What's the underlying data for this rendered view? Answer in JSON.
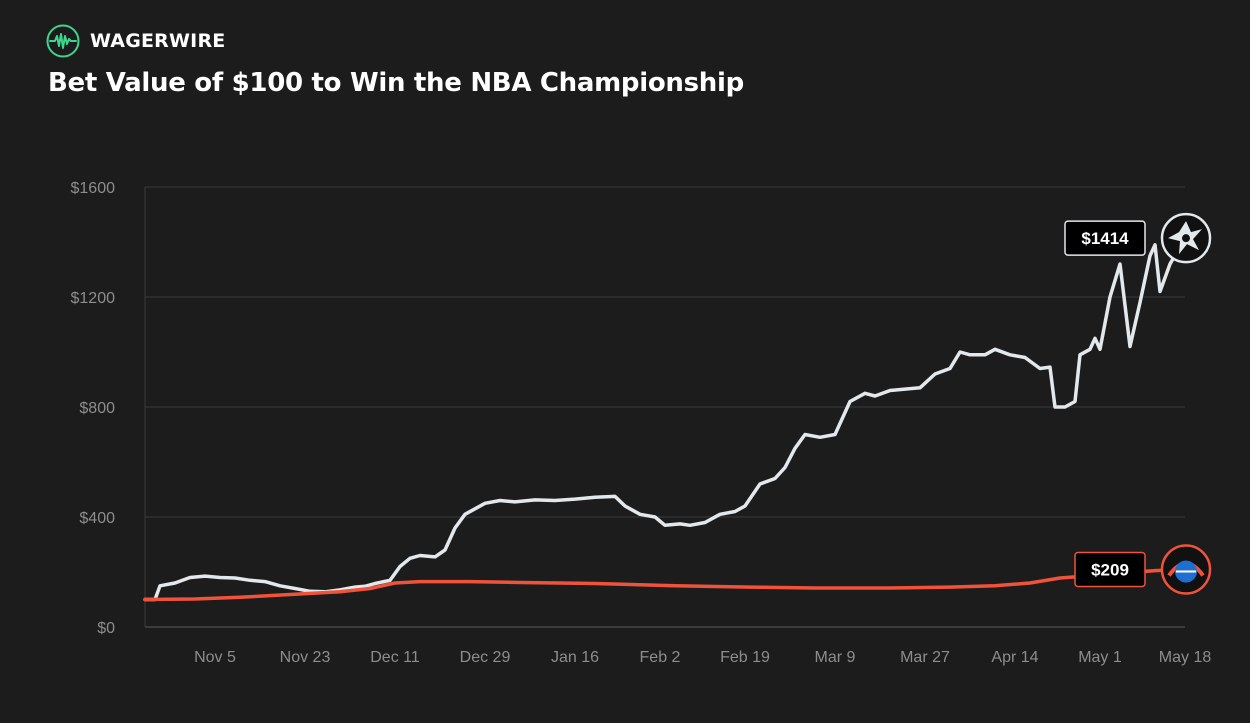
{
  "brand": {
    "name": "WAGERWIRE",
    "icon": "pulse-logo-icon",
    "accent": "#3dd68c"
  },
  "title": "Bet Value of $100 to Win the NBA Championship",
  "chart_data": {
    "type": "line",
    "title": "Bet Value of $100 to Win the NBA Championship",
    "xlabel": "",
    "ylabel": "",
    "ylim": [
      0,
      1600
    ],
    "xlim": [
      "2024-10-22",
      "2025-05-18"
    ],
    "y_ticks": [
      0,
      400,
      800,
      1200,
      1600
    ],
    "y_tick_labels": [
      "$0",
      "$400",
      "$800",
      "$1200",
      "$1600"
    ],
    "x_tick_dates": [
      "2024-11-05",
      "2024-11-23",
      "2024-12-11",
      "2024-12-29",
      "2025-01-16",
      "2025-02-02",
      "2025-02-19",
      "2025-03-09",
      "2025-03-27",
      "2025-04-14",
      "2025-05-01",
      "2025-05-18"
    ],
    "x_tick_labels": [
      "Nov 5",
      "Nov 23",
      "Dec 11",
      "Dec 29",
      "Jan 16",
      "Feb 2",
      "Feb 19",
      "Mar 9",
      "Mar 27",
      "Apr 14",
      "May 1",
      "May 18"
    ],
    "grid": true,
    "series": [
      {
        "team": "Spurs",
        "color": "#e3e8ec",
        "end_label": "$1414",
        "icon": "spurs-logo-icon",
        "points": [
          [
            "2024-10-22",
            100
          ],
          [
            "2024-10-24",
            100
          ],
          [
            "2024-10-25",
            150
          ],
          [
            "2024-10-28",
            160
          ],
          [
            "2024-10-31",
            180
          ],
          [
            "2024-11-03",
            185
          ],
          [
            "2024-11-06",
            180
          ],
          [
            "2024-11-09",
            178
          ],
          [
            "2024-11-12",
            170
          ],
          [
            "2024-11-15",
            165
          ],
          [
            "2024-11-18",
            150
          ],
          [
            "2024-11-21",
            140
          ],
          [
            "2024-11-24",
            130
          ],
          [
            "2024-11-27",
            128
          ],
          [
            "2024-11-30",
            135
          ],
          [
            "2024-12-03",
            145
          ],
          [
            "2024-12-05",
            148
          ],
          [
            "2024-12-07",
            158
          ],
          [
            "2024-12-10",
            170
          ],
          [
            "2024-12-12",
            220
          ],
          [
            "2024-12-14",
            250
          ],
          [
            "2024-12-16",
            260
          ],
          [
            "2024-12-19",
            255
          ],
          [
            "2024-12-21",
            280
          ],
          [
            "2024-12-23",
            360
          ],
          [
            "2024-12-25",
            410
          ],
          [
            "2024-12-27",
            430
          ],
          [
            "2024-12-29",
            450
          ],
          [
            "2025-01-01",
            460
          ],
          [
            "2025-01-04",
            455
          ],
          [
            "2025-01-08",
            462
          ],
          [
            "2025-01-12",
            460
          ],
          [
            "2025-01-16",
            465
          ],
          [
            "2025-01-20",
            472
          ],
          [
            "2025-01-24",
            475
          ],
          [
            "2025-01-26",
            440
          ],
          [
            "2025-01-29",
            410
          ],
          [
            "2025-02-01",
            400
          ],
          [
            "2025-02-03",
            370
          ],
          [
            "2025-02-06",
            375
          ],
          [
            "2025-02-08",
            370
          ],
          [
            "2025-02-11",
            380
          ],
          [
            "2025-02-14",
            410
          ],
          [
            "2025-02-17",
            420
          ],
          [
            "2025-02-19",
            440
          ],
          [
            "2025-02-22",
            520
          ],
          [
            "2025-02-25",
            540
          ],
          [
            "2025-02-27",
            580
          ],
          [
            "2025-03-01",
            650
          ],
          [
            "2025-03-03",
            700
          ],
          [
            "2025-03-06",
            690
          ],
          [
            "2025-03-09",
            700
          ],
          [
            "2025-03-12",
            820
          ],
          [
            "2025-03-15",
            850
          ],
          [
            "2025-03-17",
            840
          ],
          [
            "2025-03-20",
            860
          ],
          [
            "2025-03-23",
            865
          ],
          [
            "2025-03-26",
            870
          ],
          [
            "2025-03-29",
            920
          ],
          [
            "2025-04-01",
            940
          ],
          [
            "2025-04-03",
            1000
          ],
          [
            "2025-04-05",
            990
          ],
          [
            "2025-04-08",
            990
          ],
          [
            "2025-04-10",
            1010
          ],
          [
            "2025-04-13",
            990
          ],
          [
            "2025-04-16",
            980
          ],
          [
            "2025-04-19",
            940
          ],
          [
            "2025-04-21",
            945
          ],
          [
            "2025-04-22",
            800
          ],
          [
            "2025-04-24",
            800
          ],
          [
            "2025-04-26",
            820
          ],
          [
            "2025-04-27",
            990
          ],
          [
            "2025-04-29",
            1010
          ],
          [
            "2025-04-30",
            1050
          ],
          [
            "2025-05-01",
            1010
          ],
          [
            "2025-05-03",
            1200
          ],
          [
            "2025-05-05",
            1320
          ],
          [
            "2025-05-07",
            1020
          ],
          [
            "2025-05-09",
            1180
          ],
          [
            "2025-05-11",
            1350
          ],
          [
            "2025-05-12",
            1390
          ],
          [
            "2025-05-13",
            1220
          ],
          [
            "2025-05-15",
            1320
          ],
          [
            "2025-05-18",
            1414
          ]
        ]
      },
      {
        "team": "Thunder",
        "color": "#f0533a",
        "end_label": "$209",
        "icon": "thunder-logo-icon",
        "points": [
          [
            "2024-10-22",
            100
          ],
          [
            "2024-11-01",
            102
          ],
          [
            "2024-11-10",
            108
          ],
          [
            "2024-11-20",
            118
          ],
          [
            "2024-11-30",
            128
          ],
          [
            "2024-12-06",
            140
          ],
          [
            "2024-12-11",
            160
          ],
          [
            "2024-12-16",
            165
          ],
          [
            "2024-12-26",
            165
          ],
          [
            "2025-01-05",
            162
          ],
          [
            "2025-01-20",
            158
          ],
          [
            "2025-02-05",
            150
          ],
          [
            "2025-02-20",
            145
          ],
          [
            "2025-03-05",
            142
          ],
          [
            "2025-03-20",
            142
          ],
          [
            "2025-04-01",
            145
          ],
          [
            "2025-04-10",
            150
          ],
          [
            "2025-04-17",
            160
          ],
          [
            "2025-04-23",
            178
          ],
          [
            "2025-04-28",
            185
          ],
          [
            "2025-05-05",
            195
          ],
          [
            "2025-05-12",
            205
          ],
          [
            "2025-05-18",
            209
          ]
        ]
      }
    ]
  }
}
